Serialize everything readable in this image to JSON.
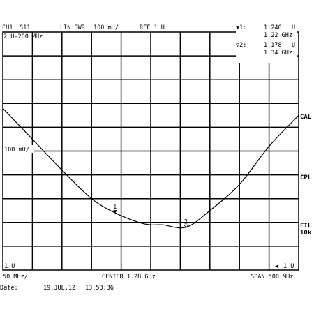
{
  "header": {
    "channel": "CH1",
    "parameter": "S11",
    "format": "LIN SWR",
    "scale": "100 mU/",
    "reference": "REF 1 U",
    "range_label": "2 U-200 MHz"
  },
  "markers": [
    {
      "symbol": "▼1:",
      "value": "1.240",
      "unit": "U",
      "freq": "1.22 GHz"
    },
    {
      "symbol": "▽2:",
      "value": "1.178",
      "unit": "U",
      "freq": "1.34 GHz"
    }
  ],
  "side_labels": {
    "cal": "CAL",
    "cpl": "CPL",
    "fil": "FIL",
    "fil_bw": "10k"
  },
  "left_labels": {
    "mid": "100 mU/",
    "bottom": "1 U"
  },
  "footer": {
    "start": "50 MHz/",
    "center": "CENTER 1.28 GHz",
    "span": "SPAN 500 MHz",
    "ref_arrow": "◀",
    "ref_value": "1 U",
    "date_label": "Date:",
    "date": "19.JUL.12",
    "time": "13:53:36"
  },
  "chart_data": {
    "type": "line",
    "xlabel": "",
    "ylabel": "",
    "xlim": [
      1.03,
      1.53
    ],
    "ylim": [
      1.0,
      2.0
    ],
    "x_unit": "GHz",
    "y_unit": "U",
    "grid": true,
    "grid_divisions": {
      "x": 10,
      "y": 10
    },
    "series": [
      {
        "x": [
          1.03,
          1.08,
          1.13,
          1.18,
          1.22,
          1.26,
          1.28,
          1.3,
          1.34,
          1.38,
          1.43,
          1.48,
          1.53
        ],
        "y": [
          1.68,
          1.55,
          1.42,
          1.3,
          1.24,
          1.2,
          1.19,
          1.19,
          1.18,
          1.25,
          1.36,
          1.52,
          1.65
        ]
      }
    ],
    "markers": [
      {
        "label": "1",
        "x": 1.22,
        "y": 1.24
      },
      {
        "label": "2",
        "x": 1.34,
        "y": 1.178
      }
    ]
  }
}
